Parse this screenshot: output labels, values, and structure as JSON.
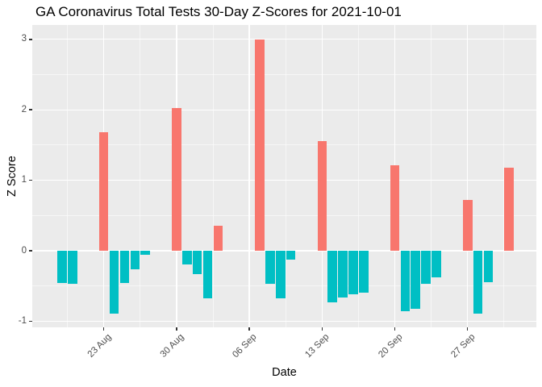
{
  "chart_data": {
    "type": "bar",
    "title": "GA Coronavirus Total Tests 30-Day Z-Scores for 2021-10-01",
    "xlabel": "Date",
    "ylabel": "Z Score",
    "ylim": [
      -1.09,
      3.19
    ],
    "grid": "major+minor",
    "legend": "none",
    "y_ticks": [
      {
        "label": "3",
        "value": 3
      },
      {
        "label": "2",
        "value": 2
      },
      {
        "label": "1",
        "value": 1
      },
      {
        "label": "0",
        "value": 0
      },
      {
        "label": "-1",
        "value": -1
      }
    ],
    "y_minor_ticks": [
      -0.5,
      0.5,
      1.5,
      2.5
    ],
    "x_ticks": [
      {
        "label": "23 Aug",
        "date": "2021-08-23"
      },
      {
        "label": "30 Aug",
        "date": "2021-08-30"
      },
      {
        "label": "06 Sep",
        "date": "2021-09-06"
      },
      {
        "label": "13 Sep",
        "date": "2021-09-13"
      },
      {
        "label": "20 Sep",
        "date": "2021-09-20"
      },
      {
        "label": "27 Sep",
        "date": "2021-09-27"
      }
    ],
    "colors": {
      "positive": "#F8766D",
      "negative": "#00BFC4",
      "panel_bg": "#EBEBEB",
      "grid": "#FFFFFF",
      "axis_text": "#4D4D4D",
      "tick_mark": "#333333",
      "title_text": "#000000"
    },
    "points": [
      {
        "date": "2021-08-19",
        "z": -0.46
      },
      {
        "date": "2021-08-20",
        "z": -0.47
      },
      {
        "date": "2021-08-23",
        "z": 1.68
      },
      {
        "date": "2021-08-24",
        "z": -0.89
      },
      {
        "date": "2021-08-25",
        "z": -0.46
      },
      {
        "date": "2021-08-26",
        "z": -0.26
      },
      {
        "date": "2021-08-27",
        "z": -0.06
      },
      {
        "date": "2021-08-30",
        "z": 2.03
      },
      {
        "date": "2021-08-31",
        "z": -0.2
      },
      {
        "date": "2021-09-01",
        "z": -0.33
      },
      {
        "date": "2021-09-02",
        "z": -0.67
      },
      {
        "date": "2021-09-03",
        "z": 0.36
      },
      {
        "date": "2021-09-07",
        "z": 3.0
      },
      {
        "date": "2021-09-08",
        "z": -0.47
      },
      {
        "date": "2021-09-09",
        "z": -0.67
      },
      {
        "date": "2021-09-10",
        "z": -0.13
      },
      {
        "date": "2021-09-13",
        "z": 1.56
      },
      {
        "date": "2021-09-14",
        "z": -0.73
      },
      {
        "date": "2021-09-15",
        "z": -0.66
      },
      {
        "date": "2021-09-16",
        "z": -0.62
      },
      {
        "date": "2021-09-17",
        "z": -0.59
      },
      {
        "date": "2021-09-20",
        "z": 1.21
      },
      {
        "date": "2021-09-21",
        "z": -0.86
      },
      {
        "date": "2021-09-22",
        "z": -0.82
      },
      {
        "date": "2021-09-23",
        "z": -0.47
      },
      {
        "date": "2021-09-24",
        "z": -0.38
      },
      {
        "date": "2021-09-27",
        "z": 0.72
      },
      {
        "date": "2021-09-28",
        "z": -0.89
      },
      {
        "date": "2021-09-29",
        "z": -0.45
      },
      {
        "date": "2021-10-01",
        "z": 1.18
      }
    ]
  }
}
